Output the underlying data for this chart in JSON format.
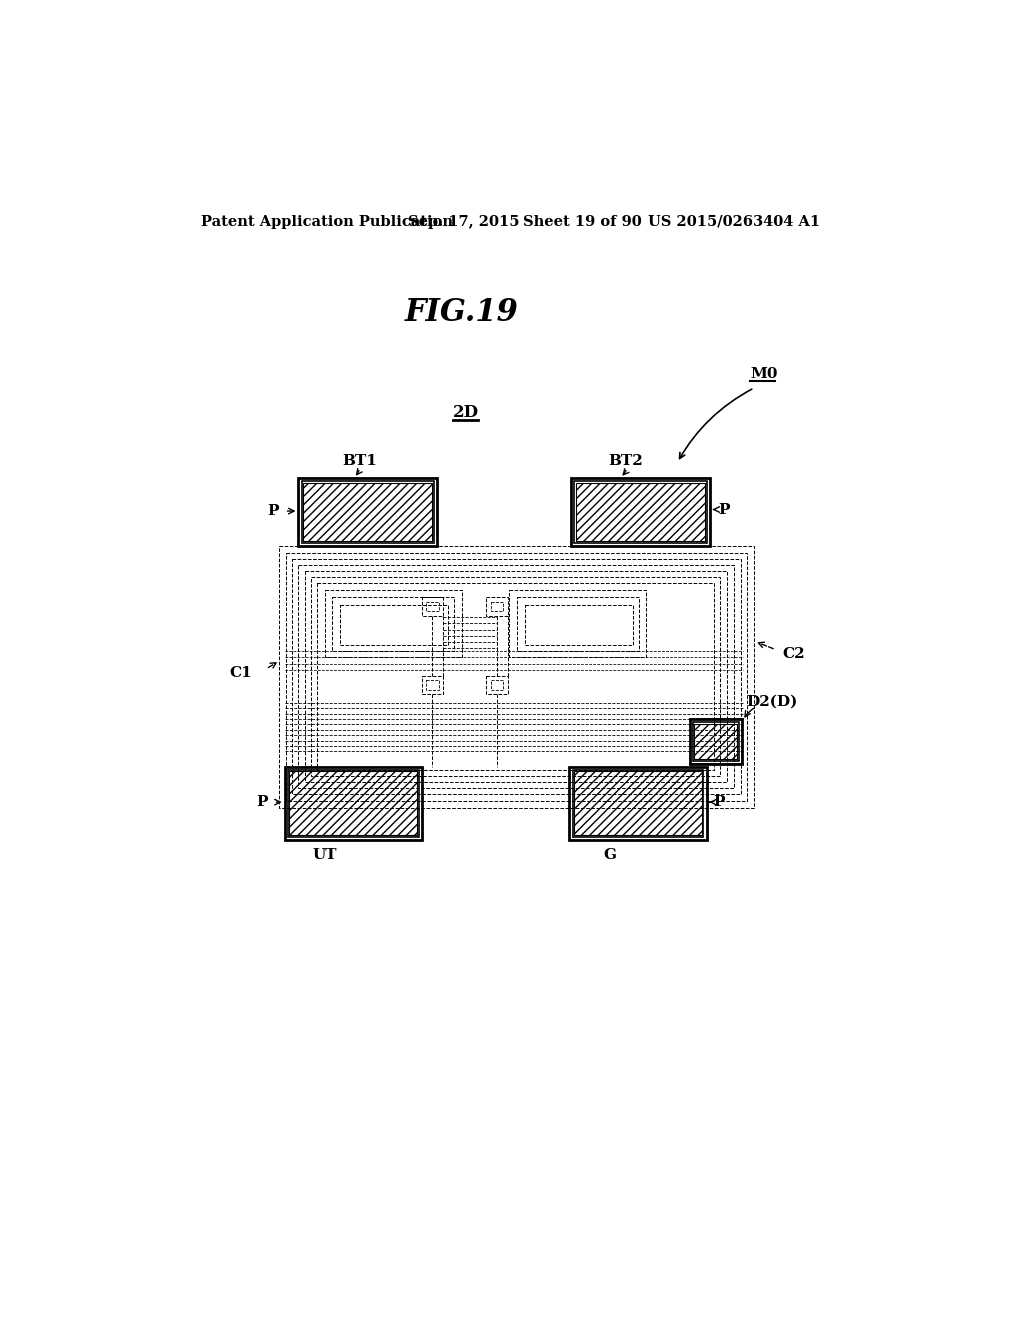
{
  "bg_color": "#ffffff",
  "header_text": "Patent Application Publication",
  "header_date": "Sep. 17, 2015",
  "header_sheet": "Sheet 19 of 90",
  "header_patent": "US 2015/0263404 A1",
  "fig_title": "FIG.19",
  "label_2D": "2D",
  "label_M0": "M0",
  "label_BT1": "BT1",
  "label_BT2": "BT2",
  "label_C1": "C1",
  "label_C2": "C2",
  "label_D2D": "D2(D)",
  "label_UT": "UT",
  "label_G": "G",
  "label_P": "P",
  "fig_width": 1024,
  "fig_height": 1320,
  "hatch_density": "////",
  "dash_color": "#000000",
  "solid_color": "#000000"
}
